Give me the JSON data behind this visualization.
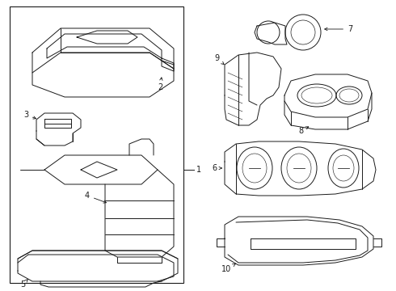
{
  "bg_color": "#ffffff",
  "line_color": "#1a1a1a",
  "lw": 0.7,
  "fig_w": 4.9,
  "fig_h": 3.6,
  "dpi": 100
}
